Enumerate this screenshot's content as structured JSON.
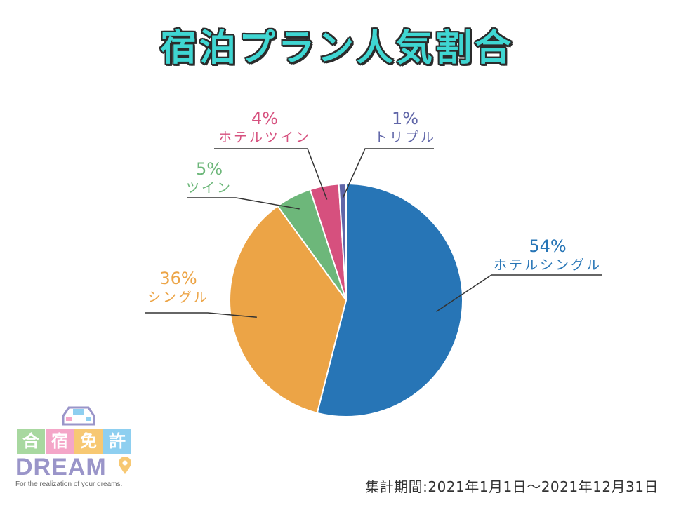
{
  "title": "宿泊プラン人気割合",
  "period": "集計期間:2021年1月1日～2021年12月31日",
  "logo": {
    "kanji": [
      "合",
      "宿",
      "免",
      "許"
    ],
    "kanji_colors": [
      "#a8d8a0",
      "#f4a6c8",
      "#f7c873",
      "#8ecff0"
    ],
    "brand": "DREAM",
    "tagline": "For the realization of your dreams."
  },
  "chart_data": {
    "type": "pie",
    "title": "宿泊プラン人気割合",
    "start_angle_deg": 0,
    "direction": "clockwise",
    "slices": [
      {
        "name": "ホテルシングル",
        "value": 54,
        "label": "54%",
        "color": "#2775b6"
      },
      {
        "name": "シングル",
        "value": 36,
        "label": "36%",
        "color": "#eca446"
      },
      {
        "name": "ツイン",
        "value": 5,
        "label": "5%",
        "color": "#6db77a"
      },
      {
        "name": "ホテルツイン",
        "value": 4,
        "label": "4%",
        "color": "#d6507e"
      },
      {
        "name": "トリプル",
        "value": 1,
        "label": "1%",
        "color": "#6066a8"
      }
    ]
  }
}
